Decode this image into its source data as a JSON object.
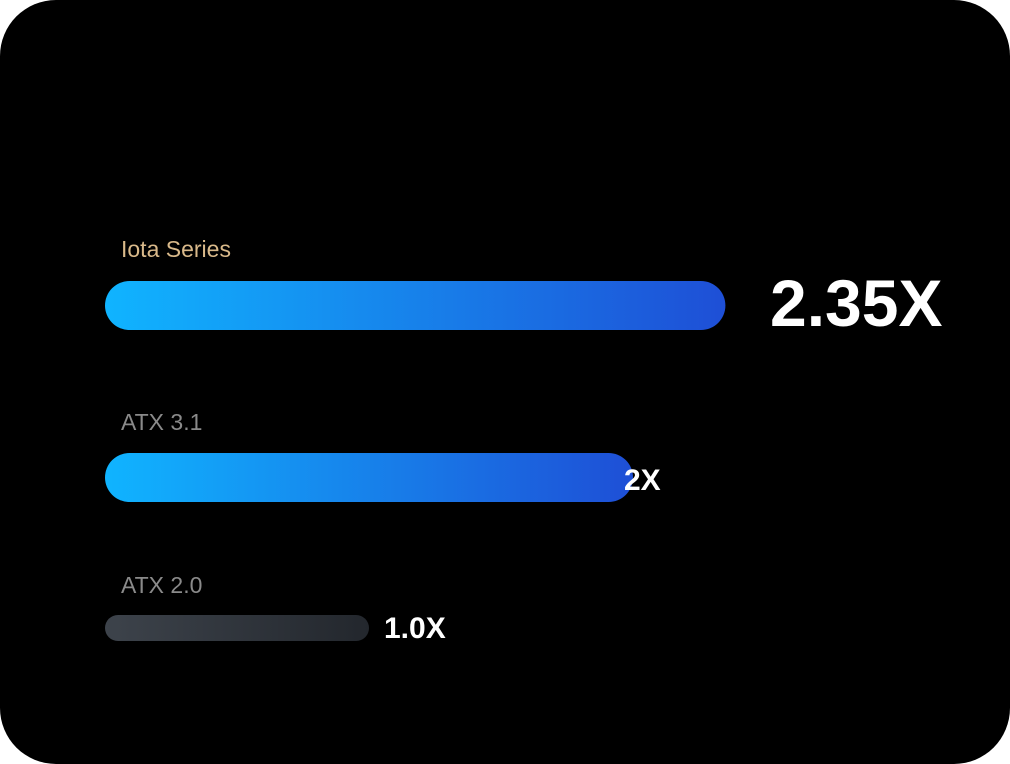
{
  "colors": {
    "background": "#000000",
    "highlight_label": "#d9b98a",
    "muted_label": "#8a8a8a",
    "value_text": "#ffffff",
    "gradient_blue_start": "#10b4ff",
    "gradient_blue_end": "#1e4fd6",
    "gradient_gray_start": "#3d434b",
    "gradient_gray_end": "#23272d"
  },
  "chart_data": {
    "type": "bar",
    "orientation": "horizontal",
    "categories": [
      "Iota Series",
      "ATX 3.1",
      "ATX 2.0"
    ],
    "values": [
      2.35,
      2.0,
      1.0
    ],
    "value_labels": [
      "2.35X",
      "2X",
      "1.0X"
    ],
    "highlighted": [
      true,
      false,
      false
    ],
    "bar_styles": [
      "blue-gradient",
      "blue-gradient",
      "gray-gradient"
    ],
    "title": "",
    "xlabel": "",
    "ylabel": "",
    "grid": false,
    "legend": "none"
  }
}
